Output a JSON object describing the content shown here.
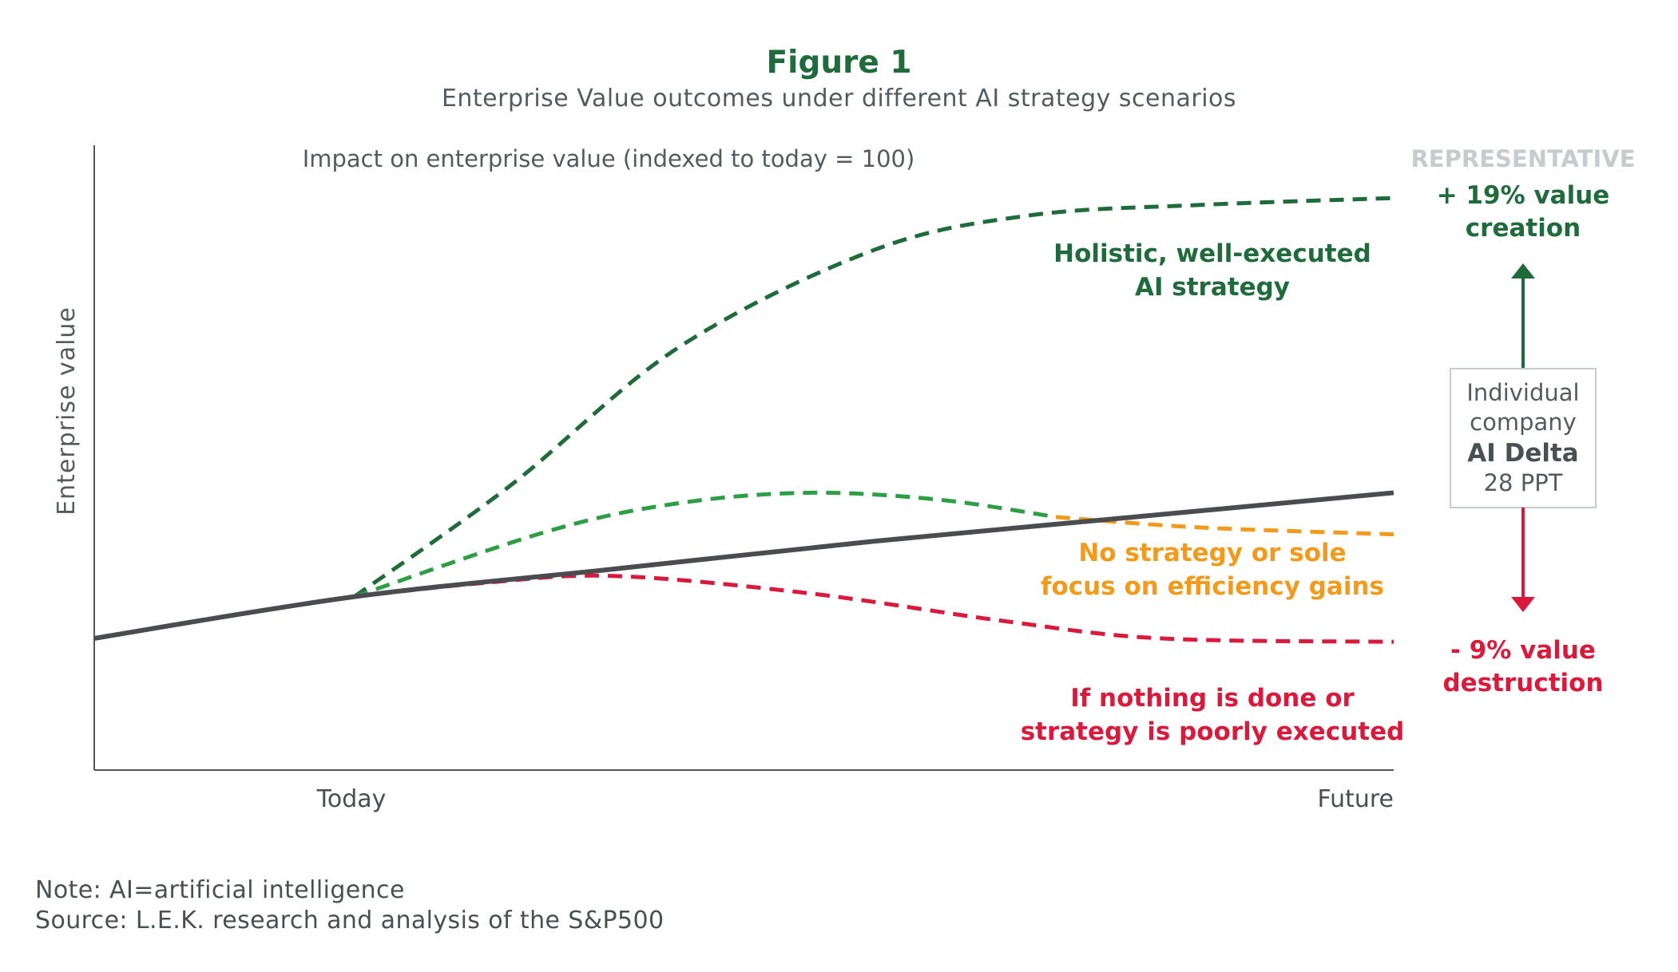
{
  "figure": {
    "title": "Figure 1",
    "subtitle": "Enterprise Value outcomes under different AI strategy scenarios"
  },
  "chart_data": {
    "type": "line",
    "title": "Impact on enterprise value (indexed to today = 100)",
    "ylabel": "Enterprise value",
    "xlabel": "",
    "x_ticks": [
      "Today",
      "Future"
    ],
    "grid": false,
    "colors": {
      "baseline": "#4a4c50",
      "holistic": "#1f6b3b",
      "early": "#2e9e46",
      "no_strategy": "#f29a1b",
      "nothing": "#d91a3c",
      "representative": "#c8cbcd",
      "delta_box": "#c8cbcd"
    },
    "series": [
      {
        "key": "baseline",
        "style": "solid",
        "x": [
          0,
          0.2,
          0.4,
          0.6,
          0.8,
          1.0
        ],
        "y": [
          88,
          100,
          108,
          116,
          123,
          130
        ]
      },
      {
        "key": "holistic",
        "style": "dashed",
        "x": [
          0.2,
          0.32,
          0.45,
          0.6,
          0.72,
          0.85,
          1.0
        ],
        "y": [
          100,
          132,
          172,
          200,
          210,
          213,
          215
        ]
      },
      {
        "key": "early",
        "style": "dashed",
        "x": [
          0.2,
          0.35,
          0.45,
          0.55,
          0.65,
          0.74
        ],
        "y": [
          100,
          119,
          127,
          130,
          128,
          123
        ]
      },
      {
        "key": "no_strategy",
        "style": "dashed",
        "x": [
          0.74,
          0.85,
          1.0
        ],
        "y": [
          123,
          120,
          118
        ]
      },
      {
        "key": "nothing",
        "style": "dashed",
        "x": [
          0.2,
          0.3,
          0.4,
          0.55,
          0.7,
          0.82,
          1.0
        ],
        "y": [
          100,
          104,
          106,
          101,
          93,
          88,
          87
        ]
      }
    ],
    "annotations": {
      "holistic": [
        "Holistic, well-executed",
        "AI strategy"
      ],
      "no_strategy": [
        "No strategy or sole",
        "focus on efficiency gains"
      ],
      "nothing": [
        "If nothing is done or",
        "strategy is poorly executed"
      ]
    },
    "side_panel": {
      "header": "REPRESENTATIVE",
      "top": [
        "+ 19% value",
        "creation"
      ],
      "bottom": [
        "- 9% value",
        "destruction"
      ],
      "box": [
        "Individual",
        "company",
        "AI Delta",
        "28 PPT"
      ]
    }
  },
  "notes": [
    "Note: AI=artificial intelligence",
    "Source: L.E.K. research and analysis of the S&P500"
  ]
}
